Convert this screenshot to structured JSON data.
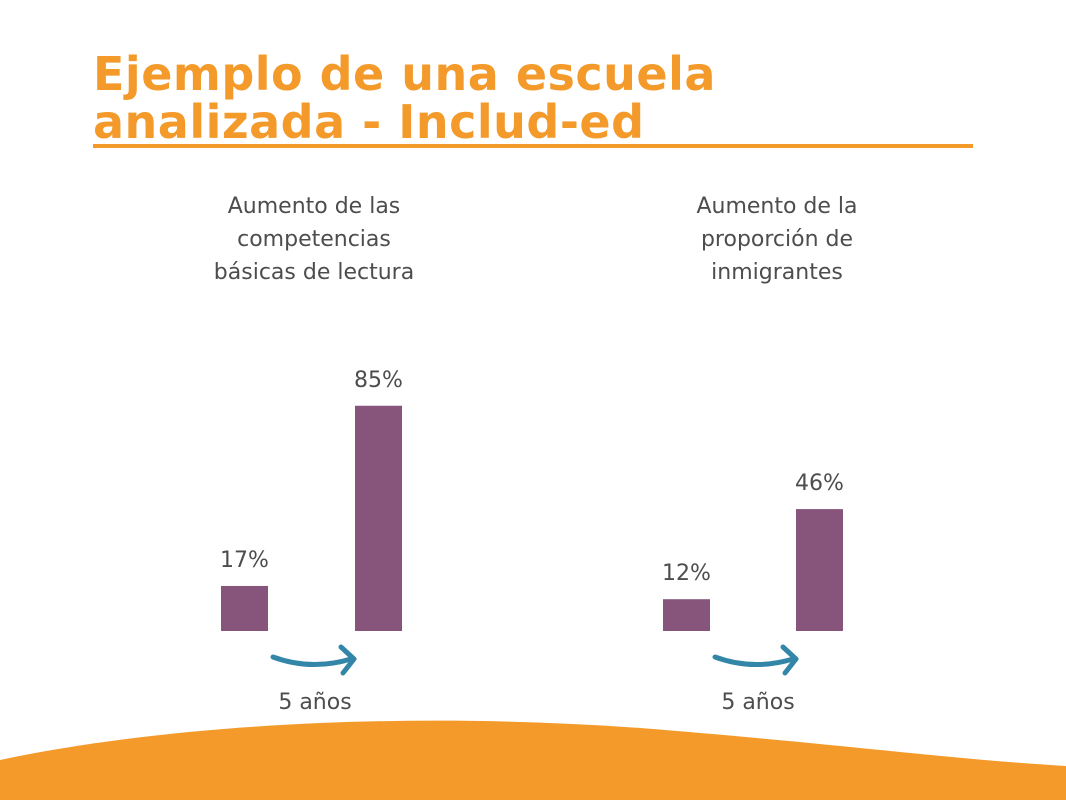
{
  "title": {
    "line1": "Ejemplo de una escuela",
    "line2": "analizada - Includ-ed"
  },
  "colors": {
    "accent": "#F39A2A",
    "bar": "#87547C",
    "arrow": "#3486A8",
    "text": "#4d4d4d"
  },
  "chart_data": [
    {
      "type": "bar",
      "title": "Aumento de las competencias básicas de lectura",
      "title_lines": [
        "Aumento de las",
        "competencias",
        "básicas de lectura"
      ],
      "categories": [
        "",
        ""
      ],
      "values": [
        17,
        85
      ],
      "value_labels": [
        "17%",
        "85%"
      ],
      "ylim": [
        0,
        100
      ],
      "annotation": "5 años",
      "xlabel": "",
      "ylabel": "",
      "grid": false
    },
    {
      "type": "bar",
      "title": "Aumento de la proporción de inmigrantes",
      "title_lines": [
        "Aumento de la",
        "proporción de",
        "inmigrantes"
      ],
      "categories": [
        "",
        ""
      ],
      "values": [
        12,
        46
      ],
      "value_labels": [
        "12%",
        "46%"
      ],
      "ylim": [
        0,
        100
      ],
      "annotation": "5 años",
      "xlabel": "",
      "ylabel": "",
      "grid": false
    }
  ]
}
